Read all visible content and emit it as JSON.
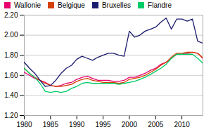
{
  "chart_data": {
    "type": "line",
    "x": [
      1980,
      1981,
      1982,
      1983,
      1984,
      1985,
      1986,
      1987,
      1988,
      1989,
      1990,
      1991,
      1992,
      1993,
      1994,
      1995,
      1996,
      1997,
      1998,
      1999,
      2000,
      2001,
      2002,
      2003,
      2004,
      2005,
      2006,
      2007,
      2008,
      2009,
      2010,
      2011,
      2012,
      2013,
      2014
    ],
    "series": [
      {
        "name": "Wallonie",
        "color": "#e8006e",
        "values": [
          1.63,
          1.6,
          1.57,
          1.55,
          1.53,
          1.5,
          1.49,
          1.5,
          1.52,
          1.53,
          1.56,
          1.58,
          1.59,
          1.57,
          1.55,
          1.55,
          1.55,
          1.54,
          1.54,
          1.55,
          1.58,
          1.58,
          1.6,
          1.62,
          1.65,
          1.67,
          1.71,
          1.73,
          1.77,
          1.81,
          1.81,
          1.82,
          1.83,
          1.82,
          1.77
        ]
      },
      {
        "name": "Belgique",
        "color": "#d44000",
        "values": [
          1.67,
          1.62,
          1.58,
          1.55,
          1.52,
          1.5,
          1.49,
          1.49,
          1.5,
          1.51,
          1.54,
          1.56,
          1.57,
          1.55,
          1.54,
          1.53,
          1.53,
          1.53,
          1.52,
          1.53,
          1.56,
          1.57,
          1.58,
          1.6,
          1.63,
          1.66,
          1.7,
          1.73,
          1.78,
          1.82,
          1.82,
          1.83,
          1.83,
          1.82,
          1.77
        ]
      },
      {
        "name": "Bruxelles",
        "color": "#1a1a6e",
        "values": [
          1.73,
          1.67,
          1.62,
          1.55,
          1.49,
          1.5,
          1.55,
          1.62,
          1.67,
          1.7,
          1.76,
          1.79,
          1.77,
          1.75,
          1.78,
          1.8,
          1.82,
          1.82,
          1.8,
          1.79,
          2.04,
          1.98,
          2.0,
          2.04,
          2.06,
          2.08,
          2.13,
          2.17,
          2.06,
          2.16,
          2.16,
          2.14,
          2.16,
          1.94,
          1.92
        ]
      },
      {
        "name": "Flandre",
        "color": "#00cc66",
        "values": [
          1.67,
          1.62,
          1.58,
          1.52,
          1.44,
          1.43,
          1.44,
          1.43,
          1.44,
          1.47,
          1.49,
          1.52,
          1.53,
          1.52,
          1.52,
          1.52,
          1.52,
          1.52,
          1.51,
          1.52,
          1.53,
          1.54,
          1.56,
          1.58,
          1.61,
          1.64,
          1.67,
          1.71,
          1.77,
          1.81,
          1.81,
          1.81,
          1.81,
          1.77,
          1.72
        ]
      }
    ],
    "xlim": [
      1980,
      2014
    ],
    "xticks": [
      1980,
      1985,
      1990,
      1995,
      2000,
      2005,
      2010
    ],
    "ylim": [
      1.2,
      2.2
    ],
    "yticks": [
      {
        "value": 1.2,
        "label": "1.20"
      },
      {
        "value": 1.4,
        "label": "1.40"
      },
      {
        "value": 1.6,
        "label": "1.60"
      },
      {
        "value": 1.8,
        "label": "1.80"
      },
      {
        "value": 2.0,
        "label": "2.00"
      },
      {
        "value": 2.2,
        "label": "2.20"
      }
    ],
    "grid": true,
    "legend": "upper-left"
  }
}
